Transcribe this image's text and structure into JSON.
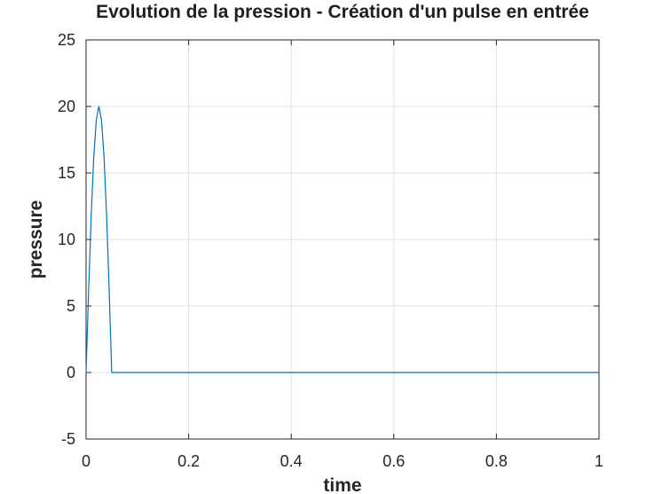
{
  "chart_data": {
    "type": "line",
    "title": "Evolution de la pression - Création d'un pulse en entrée",
    "xlabel": "time",
    "ylabel": "pressure",
    "xlim": [
      0,
      1
    ],
    "ylim": [
      -5,
      25
    ],
    "xticks": [
      0,
      0.2,
      0.4,
      0.6,
      0.8,
      1
    ],
    "xtick_labels": [
      "0",
      "0.2",
      "0.4",
      "0.6",
      "0.8",
      "1"
    ],
    "yticks": [
      -5,
      0,
      5,
      10,
      15,
      20,
      25
    ],
    "ytick_labels": [
      "-5",
      "0",
      "5",
      "10",
      "15",
      "20",
      "25"
    ],
    "grid": true,
    "series": [
      {
        "color": "#0072bd",
        "x": [
          0,
          0.005,
          0.01,
          0.015,
          0.02,
          0.025,
          0.03,
          0.035,
          0.04,
          0.045,
          0.05,
          0.055,
          0.1,
          0.2,
          0.3,
          0.4,
          0.5,
          0.6,
          0.7,
          0.8,
          0.9,
          1.0
        ],
        "y": [
          0,
          6.2,
          11.8,
          16.2,
          19.0,
          20.0,
          19.0,
          16.2,
          11.8,
          6.2,
          0,
          0,
          0,
          0,
          0,
          0,
          0,
          0,
          0,
          0,
          0,
          0
        ]
      }
    ]
  }
}
